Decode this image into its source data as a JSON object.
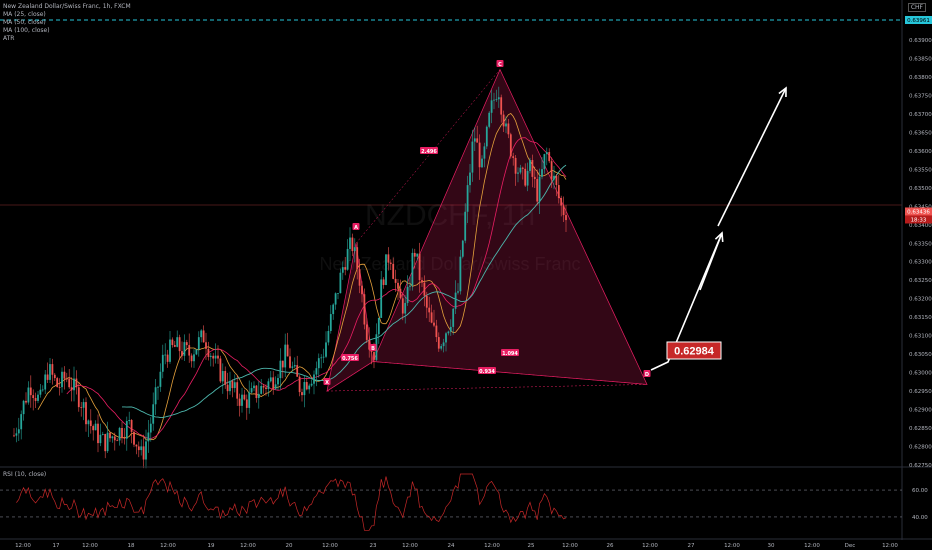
{
  "legend": {
    "title": "New Zealand Dollar/Swiss Franc, 1h, FXCM",
    "lines": [
      "MA (25, close)",
      "MA (50, close)",
      "MA (100, close)",
      "ATR"
    ]
  },
  "currency_tag": "CHF",
  "watermark": {
    "symbol": "NZDCHF, 1h",
    "name": "New Zealand Dollar/Swiss Franc"
  },
  "rsi_label": "RSI (10, close)",
  "colors": {
    "up": "#26a69a",
    "down": "#ef5350",
    "pattern": "#e91e63",
    "ma25": "#e6a23c",
    "ma50": "#e91e63",
    "ma100": "#4db6ac",
    "rsi": "#c62828",
    "target_line": "#26c6da",
    "callout": "#c62828"
  },
  "chart_data": {
    "type": "candlestick",
    "ylim": [
      0.627,
      0.6405
    ],
    "y_ticks": [
      "0.63900",
      "0.63850",
      "0.63800",
      "0.63750",
      "0.63700",
      "0.63650",
      "0.63600",
      "0.63550",
      "0.63500",
      "0.63450",
      "0.63400",
      "0.63350",
      "0.63300",
      "0.63250",
      "0.63200",
      "0.63150",
      "0.63100",
      "0.63050",
      "0.63000",
      "0.62950",
      "0.62900",
      "0.62850",
      "0.62800",
      "0.62750"
    ],
    "x_ticks": [
      "12:00",
      "17",
      "12:00",
      "18",
      "12:00",
      "19",
      "12:00",
      "20",
      "12:00",
      "23",
      "12:00",
      "24",
      "12:00",
      "25",
      "12:00",
      "26",
      "12:00",
      "27",
      "12:00",
      "30",
      "12:00",
      "Dec",
      "12:00"
    ],
    "pattern_points": [
      {
        "label": "X",
        "price": 0.6295
      },
      {
        "label": "A",
        "price": 0.6335
      },
      {
        "label": "B",
        "price": 0.6303
      },
      {
        "label": "C",
        "price": 0.6382
      },
      {
        "label": "D",
        "price": 0.6298
      }
    ],
    "ratios": [
      {
        "label": "0.756"
      },
      {
        "label": "2.496"
      },
      {
        "label": "1.094"
      },
      {
        "label": "0.934"
      }
    ],
    "target_price_label": "0.62984",
    "top_line_price": "0.63961",
    "current_price_label": "0.63436",
    "current_price": 0.63436,
    "countdown_label": "18:33",
    "rsi_levels": [
      {
        "label": "60.00",
        "value": 60
      },
      {
        "label": "40.00",
        "value": 40
      }
    ],
    "rsi_ylim": [
      25,
      75
    ]
  }
}
